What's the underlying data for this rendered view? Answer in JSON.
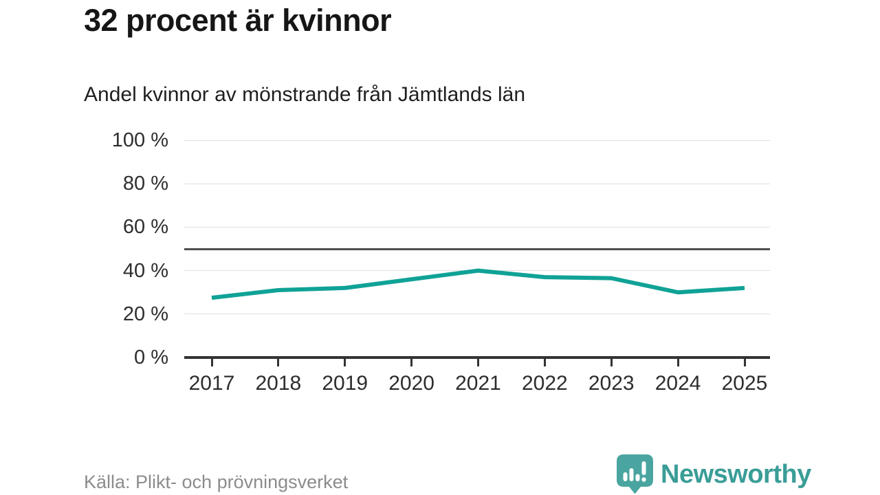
{
  "header": {
    "title": "32 procent är kvinnor",
    "subtitle": "Andel kvinnor av mönstrande från Jämtlands län"
  },
  "chart_data": {
    "type": "line",
    "title": "32 procent är kvinnor",
    "subtitle": "Andel kvinnor av mönstrande från Jämtlands län",
    "x": [
      2017,
      2018,
      2019,
      2020,
      2021,
      2022,
      2023,
      2024,
      2025
    ],
    "series": [
      {
        "name": "Andel kvinnor",
        "values": [
          27.5,
          31,
          32,
          36,
          40,
          37,
          36.5,
          30,
          32
        ]
      }
    ],
    "xlabel": "",
    "ylabel": "",
    "ylim": [
      0,
      100
    ],
    "yticks": [
      0,
      20,
      40,
      60,
      80,
      100
    ],
    "ytick_labels": [
      "0 %",
      "20 %",
      "40 %",
      "60 %",
      "80 %",
      "100 %"
    ],
    "xtick_labels": [
      "2017",
      "2018",
      "2019",
      "2020",
      "2021",
      "2022",
      "2023",
      "2024",
      "2025"
    ],
    "reference_line": 50,
    "grid": true,
    "legend_position": "none",
    "line_color": "#10a296"
  },
  "footer": {
    "source": "Källa: Plikt- och prövningsverket",
    "brand_name": "Newsworthy",
    "brand_color": "#3a9d97",
    "brand_icon_color": "#4aa5a0"
  }
}
